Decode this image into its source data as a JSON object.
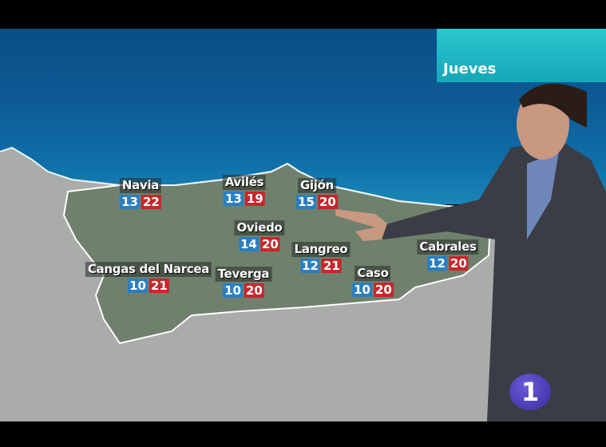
{
  "broadcast": {
    "day": "Jueves",
    "channel_logo": "1"
  },
  "colors": {
    "min_temp": "#2a7fc2",
    "max_temp": "#c8262b",
    "day_box": "#1fb6c4",
    "logo": "#4a3ab8"
  },
  "cities": [
    {
      "name": "Navia",
      "min": "13",
      "max": "22"
    },
    {
      "name": "Avilés",
      "min": "13",
      "max": "19"
    },
    {
      "name": "Gijón",
      "min": "15",
      "max": "20"
    },
    {
      "name": "Oviedo",
      "min": "14",
      "max": "20"
    },
    {
      "name": "Langreo",
      "min": "12",
      "max": "21"
    },
    {
      "name": "Cabrales",
      "min": "12",
      "max": "20"
    },
    {
      "name": "Cangas del Narcea",
      "min": "10",
      "max": "21"
    },
    {
      "name": "Teverga",
      "min": "10",
      "max": "20"
    },
    {
      "name": "Caso",
      "min": "10",
      "max": "20"
    }
  ]
}
